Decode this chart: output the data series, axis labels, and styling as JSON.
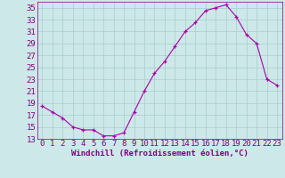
{
  "hours": [
    0,
    1,
    2,
    3,
    4,
    5,
    6,
    7,
    8,
    9,
    10,
    11,
    12,
    13,
    14,
    15,
    16,
    17,
    18,
    19,
    20,
    21,
    22,
    23
  ],
  "values": [
    18.5,
    17.5,
    16.5,
    15.0,
    14.5,
    14.5,
    13.5,
    13.5,
    14.0,
    17.5,
    21.0,
    24.0,
    26.0,
    28.5,
    31.0,
    32.5,
    34.5,
    35.0,
    35.5,
    33.5,
    30.5,
    29.0,
    23.0,
    22.0
  ],
  "line_color": "#aa00aa",
  "marker": "+",
  "bg_color": "#cce8e8",
  "grid_color": "#aacccc",
  "xlabel": "Windchill (Refroidissement éolien,°C)",
  "ylim": [
    13,
    36
  ],
  "yticks": [
    13,
    15,
    17,
    19,
    21,
    23,
    25,
    27,
    29,
    31,
    33,
    35
  ],
  "xticks": [
    0,
    1,
    2,
    3,
    4,
    5,
    6,
    7,
    8,
    9,
    10,
    11,
    12,
    13,
    14,
    15,
    16,
    17,
    18,
    19,
    20,
    21,
    22,
    23
  ],
  "axis_color": "#800080",
  "font_size": 6.5
}
